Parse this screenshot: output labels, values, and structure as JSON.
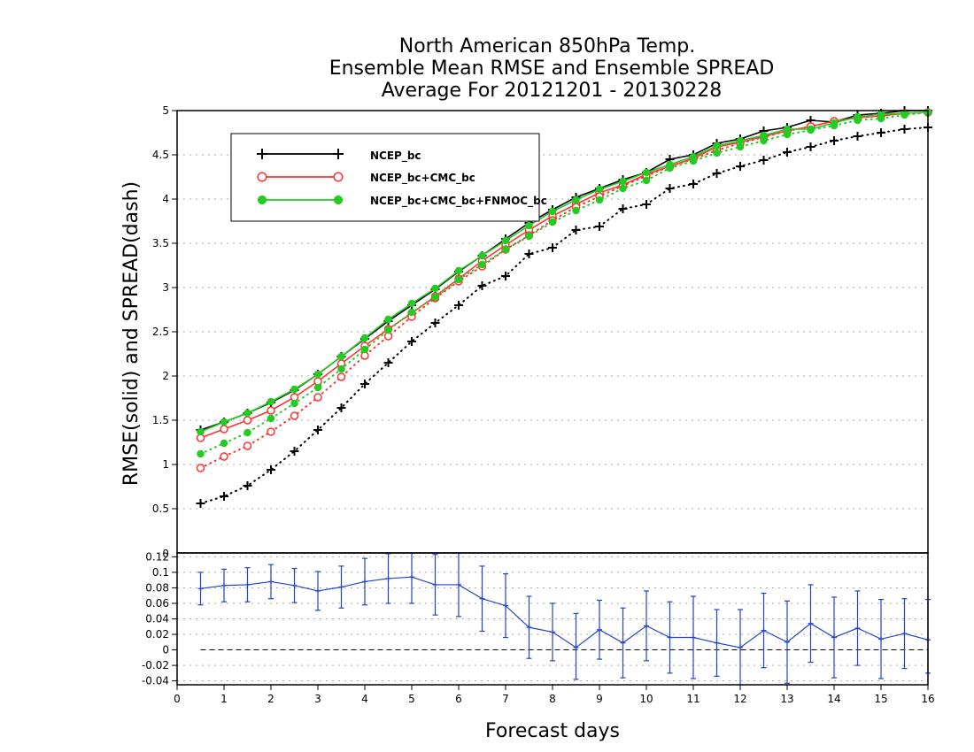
{
  "chart_data": [
    {
      "type": "line",
      "title": [
        "North American 850hPa Temp.",
        "Ensemble Mean RMSE and Ensemble SPREAD",
        "Average For 20121201 - 20130228"
      ],
      "ylabel": "RMSE(solid) and SPREAD(dash)",
      "ylim": [
        0,
        5
      ],
      "xlim": [
        0,
        16
      ],
      "yticks": [
        "0.5",
        "1",
        "1.5",
        "2",
        "2.5",
        "3",
        "3.5",
        "4",
        "4.5",
        "5"
      ],
      "grid": true,
      "legend_position": "top-left",
      "x": [
        0.5,
        1,
        1.5,
        2,
        2.5,
        3,
        3.5,
        4,
        4.5,
        5,
        5.5,
        6,
        6.5,
        7,
        7.5,
        8,
        8.5,
        9,
        9.5,
        10,
        10.5,
        11,
        11.5,
        12,
        12.5,
        13,
        13.5,
        14,
        14.5,
        15,
        15.5,
        16
      ],
      "series": [
        {
          "name": "NCEP_bc",
          "color": "#000000",
          "marker": "plus",
          "rmse": [
            1.39,
            1.48,
            1.58,
            1.7,
            1.84,
            2.02,
            2.22,
            2.42,
            2.62,
            2.8,
            2.98,
            3.18,
            3.36,
            3.55,
            3.73,
            3.88,
            4.02,
            4.12,
            4.22,
            4.3,
            4.45,
            4.5,
            4.63,
            4.68,
            4.77,
            4.81,
            4.89,
            4.87,
            4.95,
            4.97,
            5.0,
            5.0
          ],
          "spread": [
            0.56,
            0.64,
            0.76,
            0.94,
            1.15,
            1.39,
            1.64,
            1.91,
            2.15,
            2.39,
            2.6,
            2.8,
            3.02,
            3.13,
            3.38,
            3.45,
            3.65,
            3.69,
            3.89,
            3.94,
            4.12,
            4.17,
            4.29,
            4.37,
            4.44,
            4.53,
            4.59,
            4.66,
            4.71,
            4.75,
            4.79,
            4.81
          ]
        },
        {
          "name": "NCEP_bc+CMC_bc",
          "color": "#ff3333",
          "marker": "open-circle",
          "rmse": [
            1.3,
            1.4,
            1.5,
            1.61,
            1.76,
            1.94,
            2.14,
            2.34,
            2.53,
            2.71,
            2.9,
            3.1,
            3.3,
            3.48,
            3.65,
            3.81,
            3.94,
            4.07,
            4.16,
            4.28,
            4.37,
            4.46,
            4.59,
            4.64,
            4.71,
            4.77,
            4.82,
            4.88,
            4.92,
            4.94,
            4.97,
            4.98
          ],
          "spread": [
            0.96,
            1.09,
            1.21,
            1.37,
            1.55,
            1.76,
            1.99,
            2.23,
            2.45,
            2.67,
            2.88,
            3.07,
            3.24,
            3.43,
            3.59,
            3.76,
            3.91,
            4.03,
            4.15,
            4.26,
            4.37,
            4.45,
            4.55,
            4.63,
            4.7,
            4.77,
            4.82,
            4.88,
            4.92,
            4.94,
            4.97,
            4.98
          ]
        },
        {
          "name": "NCEP_bc+CMC_bc+FNMOC_bc",
          "color": "#22cc22",
          "marker": "filled-circle",
          "rmse": [
            1.37,
            1.48,
            1.58,
            1.71,
            1.85,
            2.02,
            2.22,
            2.43,
            2.64,
            2.82,
            2.99,
            3.19,
            3.36,
            3.53,
            3.7,
            3.86,
            3.99,
            4.11,
            4.2,
            4.3,
            4.39,
            4.48,
            4.6,
            4.66,
            4.72,
            4.79,
            4.79,
            4.86,
            4.93,
            4.96,
            4.97,
            4.98
          ],
          "spread": [
            1.12,
            1.24,
            1.36,
            1.52,
            1.69,
            1.87,
            2.08,
            2.3,
            2.52,
            2.72,
            2.89,
            3.09,
            3.26,
            3.43,
            3.58,
            3.74,
            3.87,
            3.99,
            4.12,
            4.21,
            4.35,
            4.43,
            4.52,
            4.59,
            4.66,
            4.73,
            4.78,
            4.83,
            4.89,
            4.91,
            4.95,
            4.98
          ]
        }
      ]
    },
    {
      "type": "line",
      "xlabel": "Forecast days",
      "xlim": [
        0,
        16
      ],
      "ylim": [
        -0.045,
        0.125
      ],
      "xticks": [
        "0",
        "1",
        "2",
        "3",
        "4",
        "5",
        "6",
        "7",
        "8",
        "9",
        "10",
        "11",
        "12",
        "13",
        "14",
        "15",
        "16"
      ],
      "yticks": [
        "0.12",
        "0.1",
        "0.08",
        "0.06",
        "0.04",
        "0.02",
        "0",
        "-0.02",
        "-0.04"
      ],
      "topLabel": "0",
      "grid": true,
      "color": "#2244cc",
      "zero_line": true,
      "x": [
        0.5,
        1,
        1.5,
        2,
        2.5,
        3,
        3.5,
        4,
        4.5,
        5,
        5.5,
        6,
        6.5,
        7,
        7.5,
        8,
        8.5,
        9,
        9.5,
        10,
        10.5,
        11,
        11.5,
        12,
        12.5,
        13,
        13.5,
        14,
        14.5,
        15,
        15.5,
        16
      ],
      "values": [
        0.079,
        0.083,
        0.084,
        0.088,
        0.083,
        0.076,
        0.081,
        0.088,
        0.092,
        0.094,
        0.084,
        0.084,
        0.066,
        0.057,
        0.029,
        0.023,
        0.003,
        0.026,
        0.009,
        0.031,
        0.016,
        0.016,
        0.009,
        0.003,
        0.025,
        0.01,
        0.034,
        0.016,
        0.028,
        0.014,
        0.021,
        0.013
      ],
      "err_high": [
        0.1,
        0.104,
        0.106,
        0.11,
        0.105,
        0.101,
        0.108,
        0.118,
        0.124,
        0.128,
        0.123,
        0.125,
        0.108,
        0.098,
        0.069,
        0.06,
        0.047,
        0.064,
        0.054,
        0.076,
        0.062,
        0.069,
        0.052,
        0.052,
        0.073,
        0.063,
        0.084,
        0.068,
        0.076,
        0.065,
        0.066,
        0.065
      ],
      "err_low": [
        0.058,
        0.062,
        0.062,
        0.066,
        0.061,
        0.051,
        0.054,
        0.058,
        0.06,
        0.06,
        0.045,
        0.043,
        0.024,
        0.016,
        -0.011,
        -0.014,
        -0.038,
        -0.012,
        -0.036,
        -0.014,
        -0.03,
        -0.037,
        -0.034,
        -0.046,
        -0.023,
        -0.043,
        -0.016,
        -0.036,
        -0.02,
        -0.037,
        -0.024,
        -0.03
      ]
    }
  ]
}
